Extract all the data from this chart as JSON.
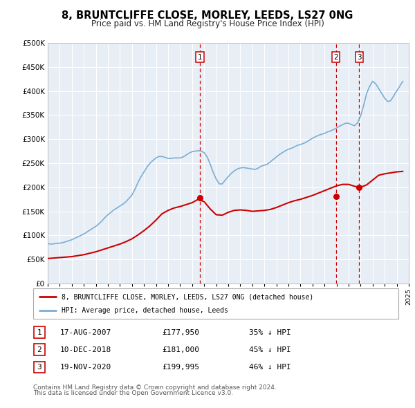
{
  "title": "8, BRUNTCLIFFE CLOSE, MORLEY, LEEDS, LS27 0NG",
  "subtitle": "Price paid vs. HM Land Registry's House Price Index (HPI)",
  "background_color": "#ffffff",
  "plot_bg_color": "#e8eef5",
  "grid_color": "#ffffff",
  "ylim": [
    0,
    500000
  ],
  "xmin": 1995,
  "xmax": 2025,
  "red_line_label": "8, BRUNTCLIFFE CLOSE, MORLEY, LEEDS, LS27 0NG (detached house)",
  "blue_line_label": "HPI: Average price, detached house, Leeds",
  "red_color": "#cc0000",
  "blue_color": "#7aadd4",
  "vline_color": "#cc0000",
  "sale_points": [
    {
      "year": 2007.63,
      "price": 177950,
      "label": "1"
    },
    {
      "year": 2018.94,
      "price": 181000,
      "label": "2"
    },
    {
      "year": 2020.89,
      "price": 199995,
      "label": "3"
    }
  ],
  "table_entries": [
    {
      "num": "1",
      "date": "17-AUG-2007",
      "price": "£177,950",
      "pct": "35% ↓ HPI"
    },
    {
      "num": "2",
      "date": "10-DEC-2018",
      "price": "£181,000",
      "pct": "45% ↓ HPI"
    },
    {
      "num": "3",
      "date": "19-NOV-2020",
      "price": "£199,995",
      "pct": "46% ↓ HPI"
    }
  ],
  "footer_line1": "Contains HM Land Registry data © Crown copyright and database right 2024.",
  "footer_line2": "This data is licensed under the Open Government Licence v3.0.",
  "hpi_data_x": [
    1995.0,
    1995.25,
    1995.5,
    1995.75,
    1996.0,
    1996.25,
    1996.5,
    1996.75,
    1997.0,
    1997.25,
    1997.5,
    1997.75,
    1998.0,
    1998.25,
    1998.5,
    1998.75,
    1999.0,
    1999.25,
    1999.5,
    1999.75,
    2000.0,
    2000.25,
    2000.5,
    2000.75,
    2001.0,
    2001.25,
    2001.5,
    2001.75,
    2002.0,
    2002.25,
    2002.5,
    2002.75,
    2003.0,
    2003.25,
    2003.5,
    2003.75,
    2004.0,
    2004.25,
    2004.5,
    2004.75,
    2005.0,
    2005.25,
    2005.5,
    2005.75,
    2006.0,
    2006.25,
    2006.5,
    2006.75,
    2007.0,
    2007.25,
    2007.5,
    2007.75,
    2008.0,
    2008.25,
    2008.5,
    2008.75,
    2009.0,
    2009.25,
    2009.5,
    2009.75,
    2010.0,
    2010.25,
    2010.5,
    2010.75,
    2011.0,
    2011.25,
    2011.5,
    2011.75,
    2012.0,
    2012.25,
    2012.5,
    2012.75,
    2013.0,
    2013.25,
    2013.5,
    2013.75,
    2014.0,
    2014.25,
    2014.5,
    2014.75,
    2015.0,
    2015.25,
    2015.5,
    2015.75,
    2016.0,
    2016.25,
    2016.5,
    2016.75,
    2017.0,
    2017.25,
    2017.5,
    2017.75,
    2018.0,
    2018.25,
    2018.5,
    2018.75,
    2019.0,
    2019.25,
    2019.5,
    2019.75,
    2020.0,
    2020.25,
    2020.5,
    2020.75,
    2021.0,
    2021.25,
    2021.5,
    2021.75,
    2022.0,
    2022.25,
    2022.5,
    2022.75,
    2023.0,
    2023.25,
    2023.5,
    2023.75,
    2024.0,
    2024.25,
    2024.5
  ],
  "hpi_data_y": [
    83000,
    82000,
    82500,
    83500,
    84000,
    85000,
    87000,
    89000,
    91000,
    94000,
    97000,
    100000,
    103000,
    107000,
    111000,
    115000,
    119000,
    124000,
    130000,
    137000,
    143000,
    148000,
    153000,
    157000,
    161000,
    165000,
    170000,
    177000,
    184000,
    196000,
    210000,
    222000,
    232000,
    242000,
    250000,
    256000,
    261000,
    264000,
    264000,
    262000,
    260000,
    260000,
    261000,
    261000,
    261000,
    263000,
    267000,
    271000,
    274000,
    275000,
    276000,
    275000,
    272000,
    263000,
    248000,
    231000,
    217000,
    207000,
    207000,
    215000,
    222000,
    229000,
    234000,
    238000,
    240000,
    241000,
    240000,
    239000,
    238000,
    237000,
    240000,
    244000,
    246000,
    248000,
    253000,
    258000,
    263000,
    268000,
    272000,
    276000,
    279000,
    281000,
    284000,
    287000,
    289000,
    291000,
    294000,
    298000,
    302000,
    305000,
    308000,
    310000,
    312000,
    315000,
    317000,
    320000,
    323000,
    327000,
    330000,
    333000,
    333000,
    330000,
    328000,
    334000,
    348000,
    370000,
    395000,
    410000,
    420000,
    415000,
    405000,
    395000,
    385000,
    378000,
    380000,
    390000,
    400000,
    410000,
    420000
  ],
  "red_data_x": [
    1995.0,
    1995.5,
    1996.0,
    1996.5,
    1997.0,
    1997.5,
    1998.0,
    1998.5,
    1999.0,
    1999.5,
    2000.0,
    2000.5,
    2001.0,
    2001.5,
    2002.0,
    2002.5,
    2003.0,
    2003.5,
    2004.0,
    2004.5,
    2005.0,
    2005.5,
    2006.0,
    2006.5,
    2007.0,
    2007.5,
    2008.0,
    2008.5,
    2009.0,
    2009.5,
    2010.0,
    2010.5,
    2011.0,
    2011.5,
    2012.0,
    2012.5,
    2013.0,
    2013.5,
    2014.0,
    2014.5,
    2015.0,
    2015.5,
    2016.0,
    2016.5,
    2017.0,
    2017.5,
    2018.0,
    2018.5,
    2019.0,
    2019.5,
    2020.0,
    2020.5,
    2021.0,
    2021.5,
    2022.0,
    2022.5,
    2023.0,
    2023.5,
    2024.0,
    2024.5
  ],
  "red_data_y": [
    52000,
    53000,
    54000,
    55000,
    56000,
    58000,
    60000,
    63000,
    66000,
    70000,
    74000,
    78000,
    82000,
    87000,
    93000,
    101000,
    110000,
    120000,
    132000,
    145000,
    152000,
    157000,
    160000,
    164000,
    168000,
    175000,
    170000,
    155000,
    143000,
    142000,
    148000,
    152000,
    153000,
    152000,
    150000,
    151000,
    152000,
    154000,
    158000,
    163000,
    168000,
    172000,
    175000,
    179000,
    183000,
    188000,
    193000,
    198000,
    203000,
    206000,
    206000,
    202000,
    200000,
    205000,
    215000,
    225000,
    228000,
    230000,
    232000,
    233000
  ]
}
